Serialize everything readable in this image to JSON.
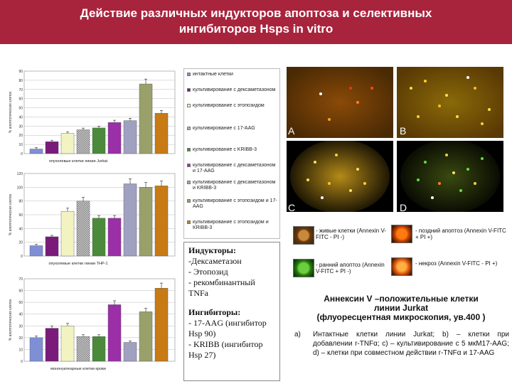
{
  "header": {
    "title_line1": "Действие различных индукторов апоптоза и селективных",
    "title_line2": "ингибиторов Hsps in vitro"
  },
  "colors": {
    "header_bg": "#a8233c",
    "series": [
      "#7f8fd6",
      "#7a1a7a",
      "#f3f3c2",
      "checker",
      "#4a8a3a",
      "#9a2fa8",
      "#a0a0c0",
      "#9aa06a",
      "#c87a14"
    ]
  },
  "legend": {
    "items": [
      "интактные клетки",
      "культивирование с дексаметазоном",
      "культивирование с этопозидом",
      "культивирование с 17-AAG",
      "культивирование с KRIBB-3",
      "культивирование с дексаметазоном и 17-AAG",
      "культивирование с дексаметазоном и KRIBB-3",
      "культивирование с этопозидом и 17-AAG",
      "культивирование с этопозидом и KRIBB-3"
    ]
  },
  "charts": [
    {
      "caption": "опухолевые клетки линии Jurkat",
      "ylabel": "% апоптотических клеток",
      "ymax": 90,
      "ticks": [
        0,
        10,
        20,
        30,
        40,
        50,
        60,
        70,
        80,
        90
      ],
      "values": [
        5,
        13,
        22,
        26,
        28,
        34,
        36,
        76,
        44
      ]
    },
    {
      "caption": "опухолевые клетки линии THP-1",
      "ylabel": "% апоптотических клеток",
      "ymax": 120,
      "ticks": [
        0,
        20,
        40,
        60,
        80,
        100,
        120
      ],
      "values": [
        15,
        28,
        65,
        80,
        55,
        55,
        105,
        100,
        102
      ]
    },
    {
      "caption": "мононуклеарные клетки крови",
      "ylabel": "% апоптотических клеток",
      "ymax": 70,
      "ticks": [
        0,
        10,
        20,
        30,
        40,
        50,
        60,
        70
      ],
      "values": [
        20,
        28,
        30,
        21,
        21,
        48,
        16,
        42,
        62
      ]
    }
  ],
  "textbox": {
    "inducers_title": "Индукторы:",
    "inducers": [
      "-Дексаметазон",
      "- Этопозид",
      "- рекомбинантный TNFa"
    ],
    "inhibitors_title": "Ингибиторы:",
    "inhibitors": [
      "- 17-AAG (ингибитор Hsp 90)",
      "- KRIBB (ингибитор Hsp 27)"
    ]
  },
  "micro": {
    "labels": [
      "A",
      "B",
      "C",
      "D"
    ]
  },
  "key": {
    "live": "- живые клетки (Annexin V-FITC - PI -)",
    "late": "- поздний апоптоз (Annexin V-FITC + PI +)",
    "early": "- ранний апоптоз (Annexin V-FITC + PI -)",
    "necrosis": "- некроз (Annexin V-FITC - PI +)"
  },
  "caption": {
    "line1": "Аннексин V –положительные клетки",
    "line2": "линии Jurkat",
    "line3": "(флуоресцентная микроскопия, ув.400 )"
  },
  "description": {
    "letter": "a)",
    "text": "Интактные клетки линии Jurkat; b) – клетки при добавлении r-TNFα; c) – культивирование с 5 мкМ17-AAG; d) – клетки при совместном действии r-TNFα и 17-AAG"
  }
}
